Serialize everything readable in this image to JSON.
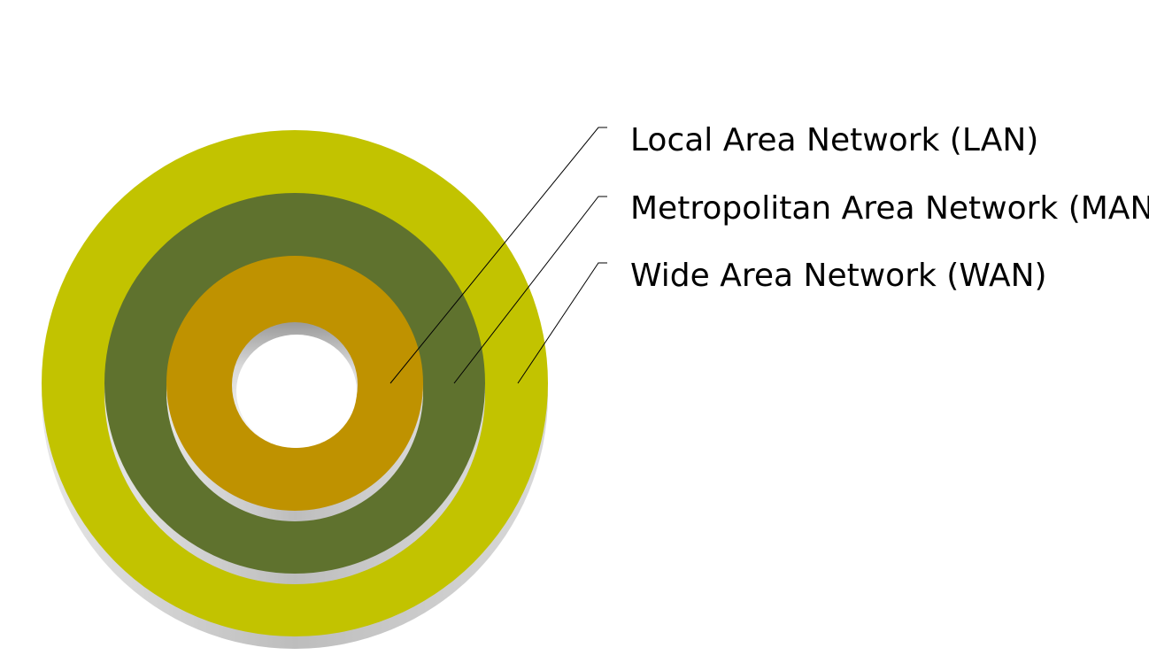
{
  "labels": {
    "lan": "Local Area Network (LAN)",
    "man": "Metropolitan Area Network (MAN)",
    "wan": "Wide Area Network (WAN)"
  },
  "colors": {
    "wan_ring": "#c2c300",
    "man_ring": "#5f722e",
    "lan_ring": "#bf9200",
    "shadow": "#c9c9c9",
    "leader": "#000000",
    "text": "#000000"
  },
  "layers": [
    {
      "name": "LAN",
      "order": 1
    },
    {
      "name": "MAN",
      "order": 2
    },
    {
      "name": "WAN",
      "order": 3
    }
  ]
}
